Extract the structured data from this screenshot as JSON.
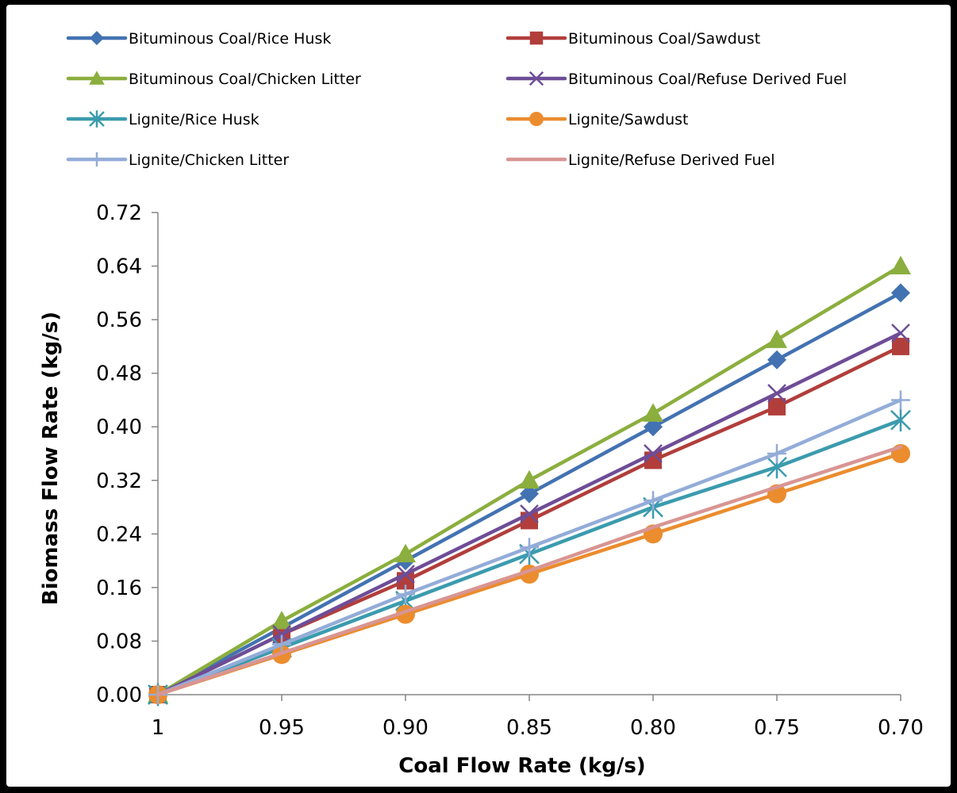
{
  "chart_data": {
    "type": "line",
    "title": "",
    "xlabel": "Coal Flow Rate (kg/s)",
    "ylabel": "Biomass Flow Rate (kg/s)",
    "categories": [
      "1",
      "0.95",
      "0.90",
      "0.85",
      "0.80",
      "0.75",
      "0.70"
    ],
    "ylim": [
      0,
      0.72
    ],
    "yticks": [
      "0.00",
      "0.08",
      "0.16",
      "0.24",
      "0.32",
      "0.40",
      "0.48",
      "0.56",
      "0.64",
      "0.72"
    ],
    "ytick_values": [
      0,
      0.08,
      0.16,
      0.24,
      0.32,
      0.4,
      0.48,
      0.56,
      0.64,
      0.72
    ],
    "grid": false,
    "legend_position": "top",
    "series": [
      {
        "name": "Bituminous Coal/Rice Husk",
        "color": "#4372B2",
        "marker": "diamond",
        "values": [
          0,
          0.1,
          0.2,
          0.3,
          0.4,
          0.5,
          0.6
        ]
      },
      {
        "name": "Bituminous Coal/Sawdust",
        "color": "#B13E3B",
        "marker": "square",
        "values": [
          0,
          0.09,
          0.17,
          0.26,
          0.35,
          0.43,
          0.52
        ]
      },
      {
        "name": "Bituminous Coal/Chicken Litter",
        "color": "#8BAE3E",
        "marker": "triangle",
        "values": [
          0,
          0.11,
          0.21,
          0.32,
          0.42,
          0.53,
          0.64
        ]
      },
      {
        "name": "Bituminous Coal/Refuse Derived Fuel",
        "color": "#6E4D97",
        "marker": "x",
        "values": [
          0,
          0.09,
          0.18,
          0.27,
          0.36,
          0.45,
          0.54
        ]
      },
      {
        "name": "Lignite/Rice Husk",
        "color": "#3B9BAE",
        "marker": "star",
        "values": [
          0,
          0.07,
          0.14,
          0.21,
          0.28,
          0.34,
          0.41
        ]
      },
      {
        "name": "Lignite/Sawdust",
        "color": "#EB8C2E",
        "marker": "circle",
        "values": [
          0,
          0.06,
          0.12,
          0.18,
          0.24,
          0.3,
          0.36
        ]
      },
      {
        "name": "Lignite/Chicken Litter",
        "color": "#93ACD8",
        "marker": "plus",
        "values": [
          0,
          0.075,
          0.15,
          0.22,
          0.29,
          0.36,
          0.44
        ]
      },
      {
        "name": "Lignite/Refuse Derived Fuel",
        "color": "#D89593",
        "marker": "none",
        "values": [
          0,
          0.062,
          0.124,
          0.185,
          0.25,
          0.31,
          0.37
        ]
      }
    ]
  }
}
